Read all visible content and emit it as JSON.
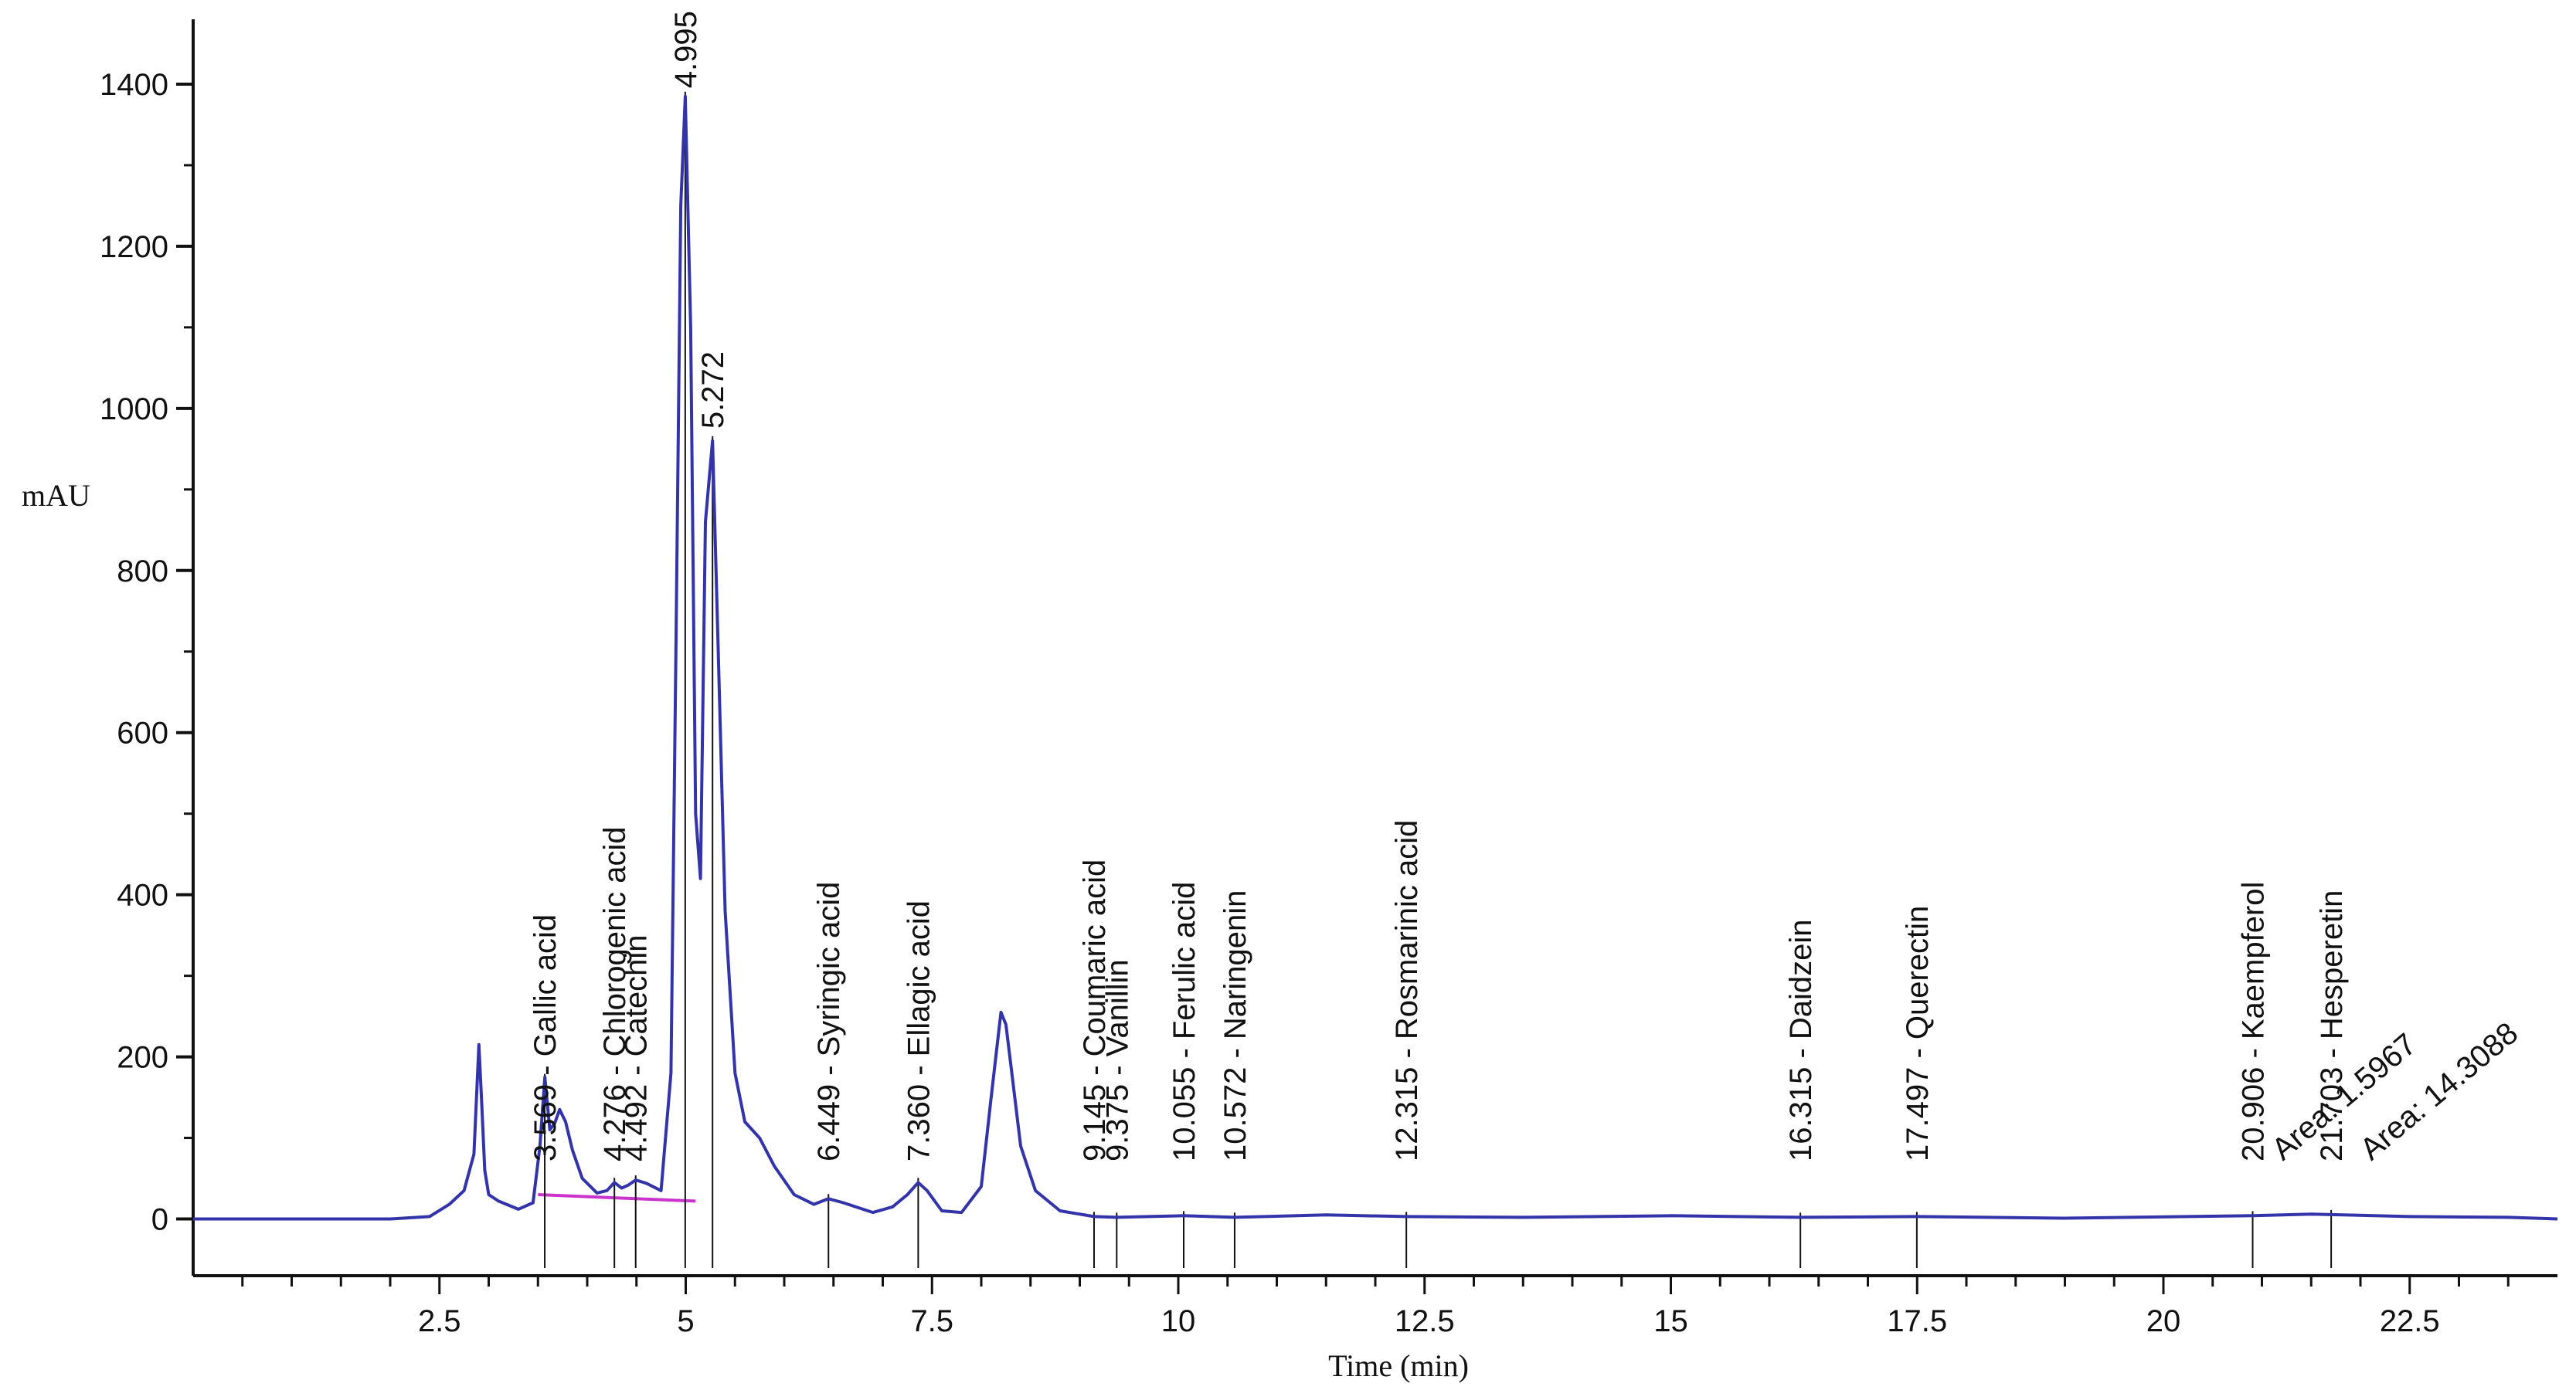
{
  "chart_data": {
    "type": "line",
    "title": "",
    "xlabel": "Time (min)",
    "ylabel": "mAU",
    "xlim": [
      0,
      24
    ],
    "ylim": [
      -70,
      1480
    ],
    "x_ticks": [
      {
        "value": 2.5,
        "label": "2.5"
      },
      {
        "value": 5,
        "label": "5"
      },
      {
        "value": 7.5,
        "label": "7.5"
      },
      {
        "value": 10,
        "label": "10"
      },
      {
        "value": 12.5,
        "label": "12.5"
      },
      {
        "value": 15,
        "label": "15"
      },
      {
        "value": 17.5,
        "label": "17.5"
      },
      {
        "value": 20,
        "label": "20"
      },
      {
        "value": 22.5,
        "label": "22.5"
      }
    ],
    "y_ticks": [
      {
        "value": 0,
        "label": "0"
      },
      {
        "value": 200,
        "label": "200"
      },
      {
        "value": 400,
        "label": "400"
      },
      {
        "value": 600,
        "label": "600"
      },
      {
        "value": 800,
        "label": "800"
      },
      {
        "value": 1000,
        "label": "1000"
      },
      {
        "value": 1200,
        "label": "1200"
      },
      {
        "value": 1400,
        "label": "1400"
      }
    ],
    "grid": false,
    "legend": "none",
    "colors": {
      "trace": "#3333aa",
      "baseline": "#cc33cc",
      "axis": "#111111"
    },
    "baseline": {
      "x": [
        3.5,
        5.1
      ],
      "y": [
        30,
        22
      ]
    },
    "series": [
      {
        "x": [
          0,
          1.0,
          2.0,
          2.4,
          2.6,
          2.75,
          2.85,
          2.9,
          2.93,
          2.96,
          3.0,
          3.1,
          3.3,
          3.45,
          3.52,
          3.57,
          3.62,
          3.67,
          3.72,
          3.78,
          3.85,
          3.95,
          4.1,
          4.2,
          4.276,
          4.35,
          4.42,
          4.492,
          4.6,
          4.75,
          4.85,
          4.9,
          4.95,
          4.995,
          5.05,
          5.1,
          5.15,
          5.2,
          5.272,
          5.33,
          5.4,
          5.5,
          5.6,
          5.75,
          5.9,
          6.1,
          6.3,
          6.449,
          6.6,
          6.9,
          7.1,
          7.25,
          7.36,
          7.45,
          7.6,
          7.8,
          8.0,
          8.1,
          8.2,
          8.25,
          8.3,
          8.4,
          8.55,
          8.8,
          9.145,
          9.375,
          9.7,
          10.055,
          10.572,
          11.5,
          12.315,
          13.5,
          15.0,
          16.315,
          17.497,
          19.0,
          20.906,
          21.5,
          22.5,
          23.5,
          24.0
        ],
        "y": [
          0,
          0,
          0,
          3,
          18,
          35,
          80,
          215,
          140,
          60,
          30,
          22,
          12,
          20,
          90,
          175,
          110,
          118,
          135,
          120,
          85,
          50,
          32,
          35,
          45,
          38,
          42,
          48,
          44,
          35,
          180,
          700,
          1250,
          1385,
          1100,
          500,
          420,
          860,
          960,
          700,
          380,
          180,
          120,
          100,
          65,
          30,
          18,
          25,
          20,
          8,
          15,
          30,
          45,
          35,
          10,
          8,
          40,
          150,
          255,
          240,
          190,
          90,
          35,
          10,
          3,
          2,
          3,
          4,
          2,
          5,
          3,
          2,
          4,
          2,
          3,
          1,
          4,
          6,
          3,
          2,
          0
        ]
      }
    ],
    "peaks": [
      {
        "x": 3.569,
        "label": "3.569 -  Gallic acid"
      },
      {
        "x": 4.276,
        "label": "4.276 -  Chlorogenic acid"
      },
      {
        "x": 4.492,
        "label": "4.492 -  Catechin"
      },
      {
        "x": 4.995,
        "label": "4.995"
      },
      {
        "x": 5.272,
        "label": "5.272"
      },
      {
        "x": 6.449,
        "label": "6.449 -  Syringic acid"
      },
      {
        "x": 7.36,
        "label": "7.360 -  Ellagic acid"
      },
      {
        "x": 9.145,
        "label": "9.145 -  Coumaric acid"
      },
      {
        "x": 9.375,
        "label": "9.375 -  Vanillin"
      },
      {
        "x": 10.055,
        "label": "10.055 -  Ferulic acid"
      },
      {
        "x": 10.572,
        "label": "10.572 -  Naringenin"
      },
      {
        "x": 12.315,
        "label": "12.315 -  Rosmarinic acid"
      },
      {
        "x": 16.315,
        "label": "16.315 -  Daidzein"
      },
      {
        "x": 17.497,
        "label": "17.497 -  Querectin"
      },
      {
        "x": 20.906,
        "label": "20.906 -  Kaempferol"
      },
      {
        "x": 21.103,
        "label": "Area: 1.5967"
      },
      {
        "x": 21.703,
        "label": "21.703 -  Hesperetin"
      },
      {
        "x": 22.0,
        "label": "Area: 14.3088"
      }
    ]
  }
}
